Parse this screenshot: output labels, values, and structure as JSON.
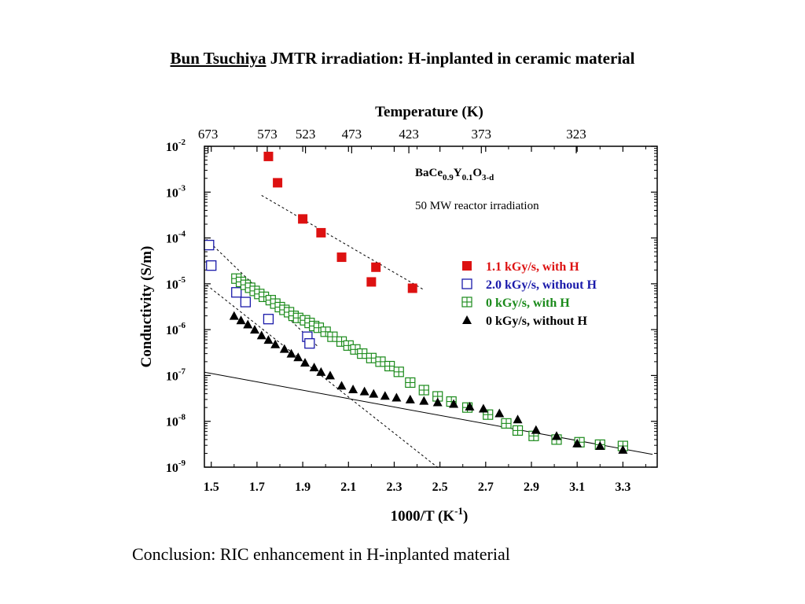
{
  "slide": {
    "title_author": "Bun Tsuchiya",
    "title_rest": " JMTR irradiation: H-inplanted in ceramic material",
    "conclusion": "Conclusion: RIC enhancement in H-inplanted material"
  },
  "chart_data": {
    "type": "scatter",
    "title": "",
    "xlabel": "1000/T (K",
    "xlabel_sup": "-1",
    "xlabel_end": ")",
    "ylabel": "Conductivity (S/m)",
    "top_axis_label": "Temperature (K)",
    "top_ticks": [
      {
        "label": "673",
        "x": 1.486
      },
      {
        "label": "573",
        "x": 1.745
      },
      {
        "label": "523",
        "x": 1.912
      },
      {
        "label": "473",
        "x": 2.114
      },
      {
        "label": "423",
        "x": 2.364
      },
      {
        "label": "373",
        "x": 2.681
      },
      {
        "label": "323",
        "x": 3.096
      }
    ],
    "xlim": [
      1.47,
      3.45
    ],
    "ylim_exp": [
      -9,
      -2
    ],
    "y_scale": "log",
    "x_ticks": [
      "1.5",
      "1.7",
      "1.9",
      "2.1",
      "2.3",
      "2.5",
      "2.7",
      "2.9",
      "3.1",
      "3.3"
    ],
    "y_ticks": [
      {
        "base": "10",
        "exp": "-2",
        "value": -2
      },
      {
        "base": "10",
        "exp": "-3",
        "value": -3
      },
      {
        "base": "10",
        "exp": "-4",
        "value": -4
      },
      {
        "base": "10",
        "exp": "-5",
        "value": -5
      },
      {
        "base": "10",
        "exp": "-6",
        "value": -6
      },
      {
        "base": "10",
        "exp": "-7",
        "value": -7
      },
      {
        "base": "10",
        "exp": "-8",
        "value": -8
      },
      {
        "base": "10",
        "exp": "-9",
        "value": -9
      }
    ],
    "annotation": {
      "formula": [
        {
          "t": "BaCe",
          "sub": false
        },
        {
          "t": "0.9",
          "sub": true
        },
        {
          "t": "Y",
          "sub": false
        },
        {
          "t": "0.1",
          "sub": true
        },
        {
          "t": "O",
          "sub": false
        },
        {
          "t": "3-d",
          "sub": true
        }
      ],
      "note": "50 MW reactor irradiation"
    },
    "legend_position": "right",
    "series": [
      {
        "name": "1.1 kGy/s, with H",
        "marker": "filled-square",
        "color": "#dd1111",
        "points": [
          [
            1.75,
            0.006
          ],
          [
            1.79,
            0.0016
          ],
          [
            1.9,
            0.00026
          ],
          [
            1.98,
            0.00013
          ],
          [
            2.07,
            3.8e-05
          ],
          [
            2.22,
            2.3e-05
          ],
          [
            2.2,
            1.1e-05
          ],
          [
            2.38,
            8e-06
          ]
        ]
      },
      {
        "name": "2.0 kGy/s, without H",
        "marker": "open-square",
        "color": "#1a1aaa",
        "points": [
          [
            1.49,
            7e-05
          ],
          [
            1.5,
            2.5e-05
          ],
          [
            1.61,
            6.5e-06
          ],
          [
            1.65,
            4e-06
          ],
          [
            1.75,
            1.7e-06
          ],
          [
            1.92,
            7e-07
          ],
          [
            1.93,
            5e-07
          ]
        ]
      },
      {
        "name": "0 kGy/s, with H",
        "marker": "boxed-plus",
        "color": "#1a8a1a",
        "points": [
          [
            1.61,
            1.3e-05
          ],
          [
            1.63,
            1.1e-05
          ],
          [
            1.65,
            9.5e-06
          ],
          [
            1.67,
            8.2e-06
          ],
          [
            1.69,
            7e-06
          ],
          [
            1.71,
            6e-06
          ],
          [
            1.73,
            5.2e-06
          ],
          [
            1.76,
            4.4e-06
          ],
          [
            1.78,
            3.7e-06
          ],
          [
            1.8,
            3.1e-06
          ],
          [
            1.82,
            2.7e-06
          ],
          [
            1.84,
            2.4e-06
          ],
          [
            1.86,
            2e-06
          ],
          [
            1.88,
            1.8e-06
          ],
          [
            1.91,
            1.6e-06
          ],
          [
            1.93,
            1.4e-06
          ],
          [
            1.95,
            1.2e-06
          ],
          [
            1.97,
            1.1e-06
          ],
          [
            2.0,
            9e-07
          ],
          [
            2.03,
            7e-07
          ],
          [
            2.07,
            5.5e-07
          ],
          [
            2.1,
            4.5e-07
          ],
          [
            2.13,
            3.7e-07
          ],
          [
            2.16,
            3e-07
          ],
          [
            2.2,
            2.4e-07
          ],
          [
            2.24,
            2e-07
          ],
          [
            2.28,
            1.6e-07
          ],
          [
            2.32,
            1.2e-07
          ],
          [
            2.37,
            7e-08
          ],
          [
            2.43,
            4.8e-08
          ],
          [
            2.49,
            3.5e-08
          ],
          [
            2.55,
            2.7e-08
          ],
          [
            2.62,
            2e-08
          ],
          [
            2.71,
            1.4e-08
          ],
          [
            2.79,
            9e-09
          ],
          [
            2.84,
            6.3e-09
          ],
          [
            2.91,
            4.8e-09
          ],
          [
            3.01,
            4e-09
          ],
          [
            3.11,
            3.5e-09
          ],
          [
            3.2,
            3.1e-09
          ],
          [
            3.3,
            2.9e-09
          ]
        ]
      },
      {
        "name": "0 kGy/s, without H",
        "marker": "filled-triangle",
        "color": "#000000",
        "points": [
          [
            1.6,
            2e-06
          ],
          [
            1.63,
            1.6e-06
          ],
          [
            1.66,
            1.3e-06
          ],
          [
            1.69,
            1e-06
          ],
          [
            1.72,
            7.5e-07
          ],
          [
            1.75,
            6e-07
          ],
          [
            1.78,
            4.8e-07
          ],
          [
            1.82,
            3.8e-07
          ],
          [
            1.85,
            3e-07
          ],
          [
            1.88,
            2.5e-07
          ],
          [
            1.91,
            1.9e-07
          ],
          [
            1.95,
            1.5e-07
          ],
          [
            1.98,
            1.2e-07
          ],
          [
            2.02,
            1e-07
          ],
          [
            2.07,
            6e-08
          ],
          [
            2.12,
            5e-08
          ],
          [
            2.17,
            4.5e-08
          ],
          [
            2.21,
            4e-08
          ],
          [
            2.26,
            3.6e-08
          ],
          [
            2.31,
            3.3e-08
          ],
          [
            2.37,
            3e-08
          ],
          [
            2.43,
            2.8e-08
          ],
          [
            2.49,
            2.6e-08
          ],
          [
            2.56,
            2.4e-08
          ],
          [
            2.63,
            2.1e-08
          ],
          [
            2.69,
            1.9e-08
          ],
          [
            2.76,
            1.5e-08
          ],
          [
            2.84,
            1.1e-08
          ],
          [
            2.92,
            6.5e-09
          ],
          [
            3.01,
            4.8e-09
          ],
          [
            3.1,
            3.3e-09
          ],
          [
            3.2,
            2.9e-09
          ],
          [
            3.3,
            2.4e-09
          ]
        ]
      }
    ],
    "fit_lines": [
      {
        "style": "dashed",
        "from": [
          1.72,
          0.00085
        ],
        "to": [
          2.43,
          7.4e-06
        ]
      },
      {
        "style": "dashed",
        "from": [
          1.48,
          9.3e-05
        ],
        "to": [
          1.97,
          4.1e-07
        ]
      },
      {
        "style": "dashed",
        "from": [
          1.48,
          9.4e-06
        ],
        "to": [
          2.5,
          9e-10
        ]
      },
      {
        "style": "solid",
        "from": [
          1.47,
          1.18e-07
        ],
        "to": [
          3.43,
          1.9e-09
        ]
      }
    ]
  }
}
